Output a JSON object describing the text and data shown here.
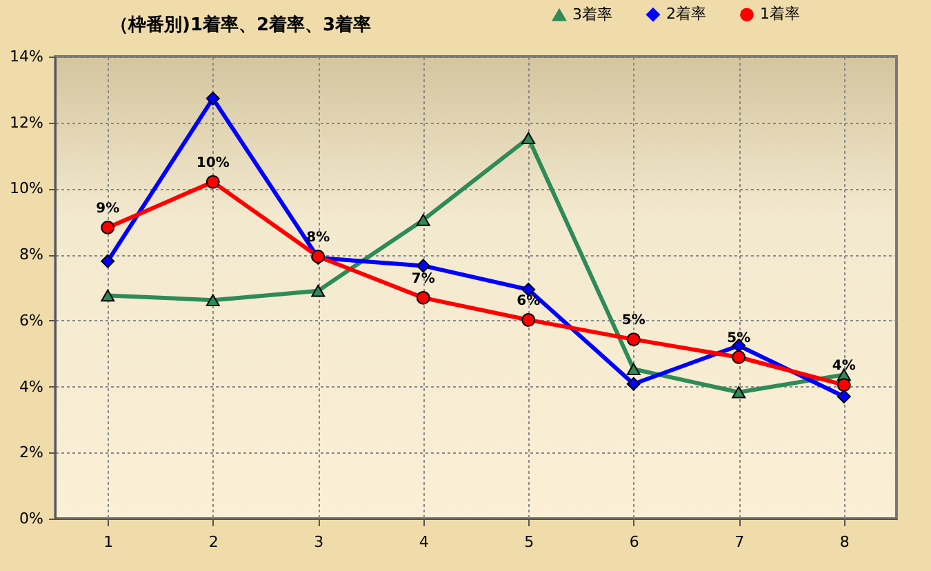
{
  "chart_data": {
    "type": "line",
    "title": "（枠番別)1着率、2着率、3着率",
    "categories": [
      "1",
      "2",
      "3",
      "4",
      "5",
      "6",
      "7",
      "8"
    ],
    "series": [
      {
        "name": "3着率",
        "color": "#2e8b57",
        "marker": "triangle",
        "values": [
          6.76,
          6.62,
          6.9,
          9.05,
          11.53,
          4.53,
          3.83,
          4.36
        ]
      },
      {
        "name": "2着率",
        "color": "#0000ff",
        "marker": "diamond",
        "values": [
          7.8,
          12.73,
          7.9,
          7.66,
          6.94,
          4.08,
          5.24,
          3.7
        ]
      },
      {
        "name": "1着率",
        "color": "#ff0000",
        "marker": "circle",
        "values": [
          8.82,
          10.2,
          7.94,
          6.69,
          6.02,
          5.43,
          4.89,
          4.05
        ],
        "value_labels": [
          "9%",
          "10%",
          "8%",
          "7%",
          "6%",
          "5%",
          "5%",
          "4%"
        ]
      }
    ],
    "ylim": [
      0,
      14
    ],
    "yticks": [
      {
        "value": 0,
        "label": "0%"
      },
      {
        "value": 2,
        "label": "2%"
      },
      {
        "value": 4,
        "label": "4%"
      },
      {
        "value": 6,
        "label": "6%"
      },
      {
        "value": 8,
        "label": "8%"
      },
      {
        "value": 10,
        "label": "10%"
      },
      {
        "value": 12,
        "label": "12%"
      },
      {
        "value": 14,
        "label": "14%"
      }
    ],
    "grid": true,
    "legend": "top right",
    "line_style": "solid"
  }
}
